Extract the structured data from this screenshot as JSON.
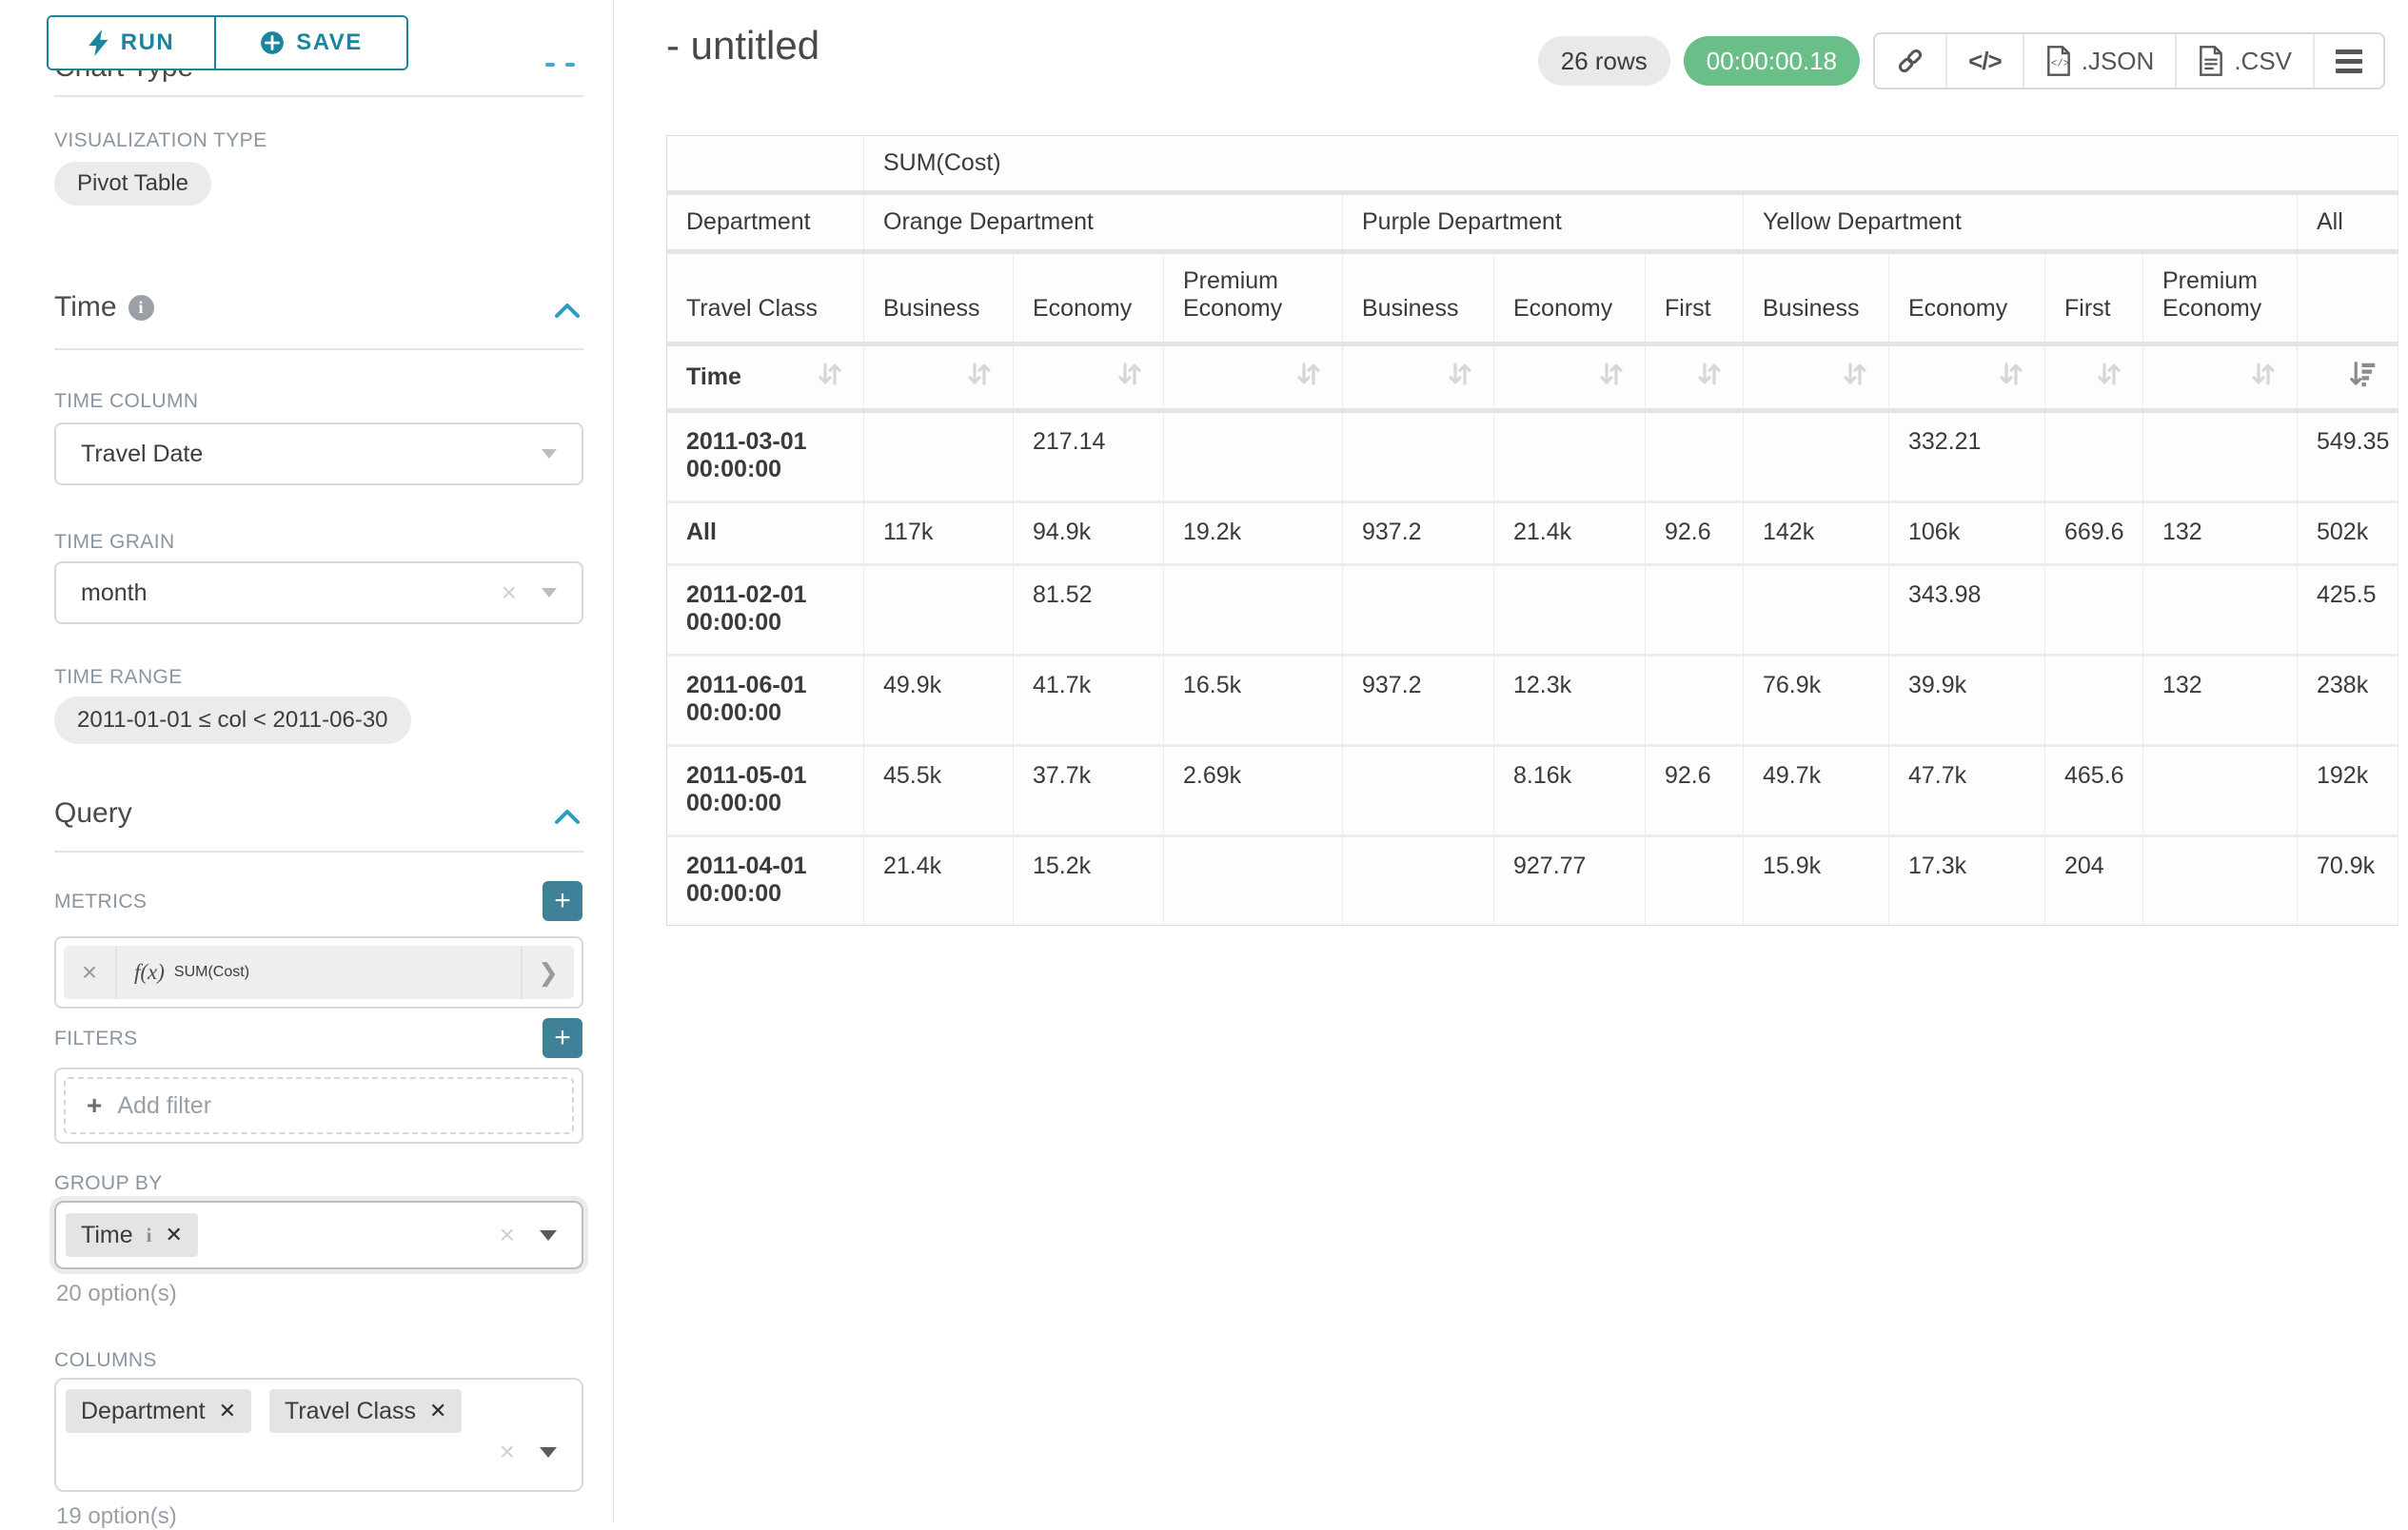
{
  "toolbar": {
    "run": "RUN",
    "save": "SAVE"
  },
  "panel": {
    "chart_type_heading": "Chart Type",
    "viz_label": "VISUALIZATION TYPE",
    "viz_value": "Pivot Table",
    "time": {
      "heading": "Time",
      "column_label": "TIME COLUMN",
      "column_value": "Travel Date",
      "grain_label": "TIME GRAIN",
      "grain_value": "month",
      "range_label": "TIME RANGE",
      "range_value": "2011-01-01 ≤ col < 2011-06-30"
    },
    "query": {
      "heading": "Query",
      "metrics_label": "METRICS",
      "metric_fx": "f(x)",
      "metric_name": "SUM(Cost)",
      "filters_label": "FILTERS",
      "add_filter_label": "Add filter",
      "groupby_label": "GROUP BY",
      "groupby_tag": "Time",
      "groupby_options": "20 option(s)",
      "columns_label": "COLUMNS",
      "columns_tags": [
        {
          "label": "Department"
        },
        {
          "label": "Travel Class"
        }
      ],
      "columns_options": "19 option(s)"
    }
  },
  "header": {
    "title": "- untitled",
    "rows_badge": "26 rows",
    "timer": "00:00:00.18",
    "export_json": ".JSON",
    "export_csv": ".CSV"
  },
  "pivot": {
    "metric_header": "SUM(Cost)",
    "col_dimension": "Department",
    "row_dimension": "Travel Class",
    "time_label": "Time",
    "groups": [
      {
        "label": "Orange Department",
        "span": 3
      },
      {
        "label": "Purple Department",
        "span": 3
      },
      {
        "label": "Yellow Department",
        "span": 4
      },
      {
        "label": "All",
        "span": 1
      }
    ],
    "sub_columns": [
      "Business",
      "Economy",
      "Premium Economy",
      "Business",
      "Economy",
      "First",
      "Business",
      "Economy",
      "First",
      "Premium Economy",
      ""
    ],
    "rows": [
      {
        "label": "2011-03-01 00:00:00",
        "values": [
          "",
          "217.14",
          "",
          "",
          "",
          "",
          "",
          "332.21",
          "",
          "",
          "549.35"
        ]
      },
      {
        "label": "All",
        "values": [
          "117k",
          "94.9k",
          "19.2k",
          "937.2",
          "21.4k",
          "92.6",
          "142k",
          "106k",
          "669.6",
          "132",
          "502k"
        ]
      },
      {
        "label": "2011-02-01 00:00:00",
        "values": [
          "",
          "81.52",
          "",
          "",
          "",
          "",
          "",
          "343.98",
          "",
          "",
          "425.5"
        ]
      },
      {
        "label": "2011-06-01 00:00:00",
        "values": [
          "49.9k",
          "41.7k",
          "16.5k",
          "937.2",
          "12.3k",
          "",
          "76.9k",
          "39.9k",
          "",
          "132",
          "238k"
        ]
      },
      {
        "label": "2011-05-01 00:00:00",
        "values": [
          "45.5k",
          "37.7k",
          "2.69k",
          "",
          "8.16k",
          "92.6",
          "49.7k",
          "47.7k",
          "465.6",
          "",
          "192k"
        ]
      },
      {
        "label": "2011-04-01 00:00:00",
        "values": [
          "21.4k",
          "15.2k",
          "",
          "",
          "927.77",
          "",
          "15.9k",
          "17.3k",
          "204",
          "",
          "70.9k"
        ]
      }
    ]
  },
  "colors": {
    "accent_teal": "#1a85a0",
    "plus_button": "#3f8198",
    "chevron_blue": "#2a9dc3",
    "timer_green": "#6abe87",
    "label_gray": "#8a95a1"
  }
}
